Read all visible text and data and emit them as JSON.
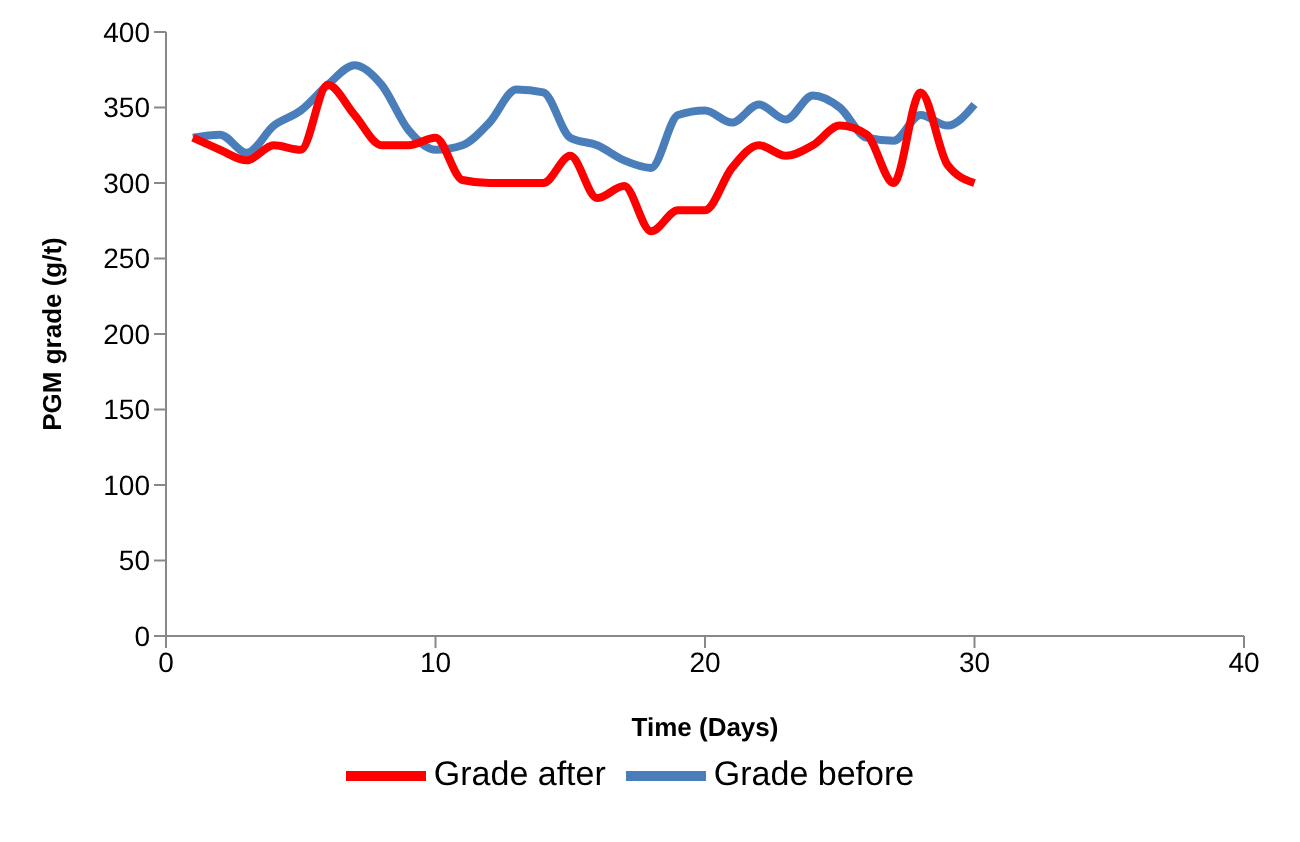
{
  "chart_data": {
    "type": "line",
    "xlabel": "Time (Days)",
    "ylabel": "PGM grade  (g/t)",
    "x": [
      1,
      2,
      3,
      4,
      5,
      6,
      7,
      8,
      9,
      10,
      11,
      12,
      13,
      14,
      15,
      16,
      17,
      18,
      19,
      20,
      21,
      22,
      23,
      24,
      25,
      26,
      27,
      28,
      29,
      30
    ],
    "series": [
      {
        "name": "Grade before",
        "color": "#4a7ebb",
        "values": [
          330,
          332,
          320,
          338,
          348,
          365,
          378,
          365,
          335,
          322,
          325,
          340,
          362,
          360,
          330,
          325,
          315,
          310,
          345,
          348,
          340,
          352,
          342,
          358,
          350,
          330,
          328,
          345,
          338,
          352
        ]
      },
      {
        "name": "Grade after",
        "color": "#ff0000",
        "values": [
          330,
          322,
          315,
          325,
          322,
          365,
          345,
          325,
          325,
          330,
          302,
          300,
          300,
          300,
          318,
          290,
          298,
          268,
          282,
          282,
          310,
          325,
          318,
          325,
          338,
          332,
          300,
          360,
          312,
          300
        ]
      }
    ],
    "xlim": [
      0,
      40
    ],
    "xticks": [
      0,
      10,
      20,
      30,
      40
    ],
    "ylim": [
      0,
      400
    ],
    "yticks": [
      0,
      50,
      100,
      150,
      200,
      250,
      300,
      350,
      400
    ],
    "grid": false,
    "legend": "bottom",
    "marker": "none",
    "line_style": "solid"
  }
}
